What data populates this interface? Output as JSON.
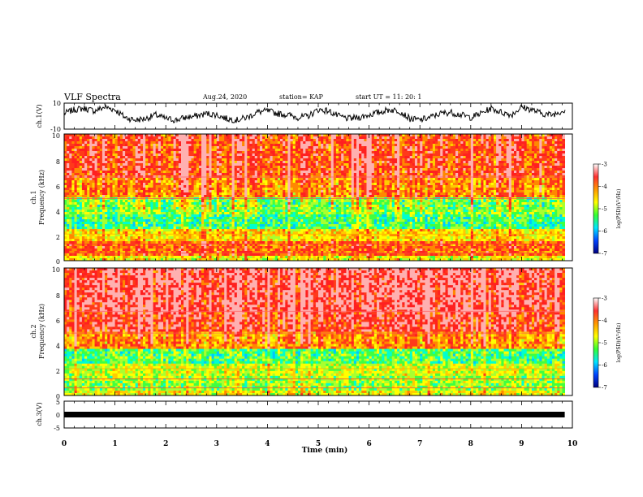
{
  "header": {
    "title": "VLF Spectra",
    "date": "Aug.24, 2020",
    "station": "station= KAP",
    "start": "start  UT  =   11: 20: 1"
  },
  "colorbar": {
    "label": "log(PSD)(V²/Hz)",
    "ticks": [
      "-3",
      "-4",
      "-5",
      "-6",
      "-7"
    ],
    "colors": [
      "#ffffff",
      "#ff3030",
      "#ff9900",
      "#ffff00",
      "#33ff33",
      "#00e5ff",
      "#0044ff",
      "#000080"
    ]
  },
  "chart_data": [
    {
      "type": "line",
      "name": "ch1-waveform",
      "ylabel": "ch.1(V)",
      "ylim": [
        -10,
        10
      ],
      "yticks": [
        "10",
        "-10"
      ],
      "xlim": [
        0,
        10
      ],
      "x": [
        0.0,
        0.2,
        0.4,
        0.6,
        0.8,
        1.0,
        1.2,
        1.4,
        1.6,
        1.8,
        2.0,
        2.2,
        2.4,
        2.6,
        2.8,
        3.0,
        3.2,
        3.4,
        3.6,
        3.8,
        4.0,
        4.2,
        4.4,
        4.6,
        4.8,
        5.0,
        5.2,
        5.4,
        5.6,
        5.8,
        6.0,
        6.2,
        6.4,
        6.6,
        6.8,
        7.0,
        7.2,
        7.4,
        7.6,
        7.8,
        8.0,
        8.2,
        8.4,
        8.6,
        8.8,
        9.0,
        9.2,
        9.4,
        9.6,
        9.8
      ],
      "values": [
        2,
        5,
        6,
        4,
        7,
        5,
        -1,
        -3,
        -2,
        1,
        -2,
        -3,
        -1,
        0,
        2,
        1,
        -2,
        -3,
        -1,
        3,
        4,
        2,
        1,
        -1,
        0,
        5,
        4,
        0,
        -2,
        -1,
        1,
        3,
        5,
        4,
        -2,
        -3,
        -1,
        2,
        3,
        1,
        -1,
        2,
        6,
        3,
        1,
        7,
        5,
        2,
        1,
        4
      ]
    },
    {
      "type": "heatmap",
      "name": "ch1-spectrogram",
      "ylabel": "ch.1\nFrequency (kHz)",
      "yticks": [
        "10",
        "8",
        "6",
        "4",
        "2",
        "0"
      ],
      "ylim": [
        0,
        10
      ],
      "xlim": [
        0,
        9.85
      ],
      "colorbar_range": [
        -7,
        -3
      ]
    },
    {
      "type": "heatmap",
      "name": "ch2-spectrogram",
      "ylabel": "ch.2\nFrequency (kHz)",
      "yticks": [
        "10",
        "8",
        "6",
        "4",
        "2",
        "0"
      ],
      "ylim": [
        0,
        10
      ],
      "xlim": [
        0,
        9.85
      ],
      "colorbar_range": [
        -7,
        -3
      ]
    },
    {
      "type": "line",
      "name": "ch3-waveform",
      "ylabel": "ch.3(V)",
      "ylim": [
        -5,
        5
      ],
      "yticks": [
        "5",
        "0",
        "-5"
      ],
      "xlim": [
        0,
        10
      ],
      "x": [
        0,
        9.85
      ],
      "values": [
        -1.2,
        -1.2
      ],
      "xlabel": "Time (min)",
      "xticks": [
        "0",
        "1",
        "2",
        "3",
        "4",
        "5",
        "6",
        "7",
        "8",
        "9",
        "10"
      ]
    }
  ]
}
